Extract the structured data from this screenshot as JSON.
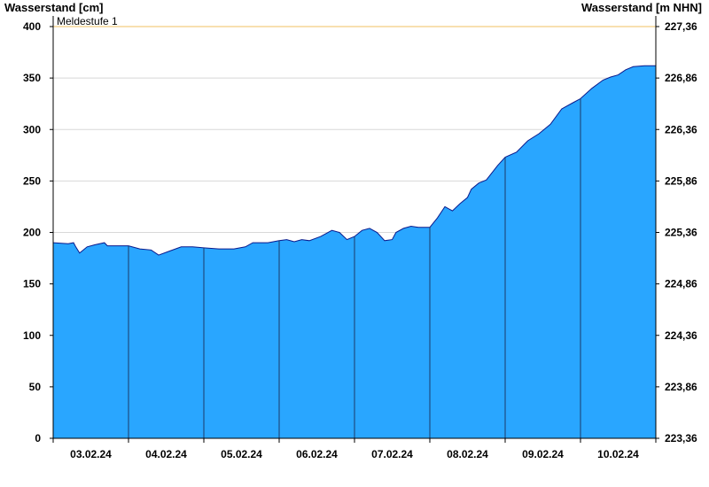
{
  "chart_data": {
    "type": "area",
    "ylabel_left": "Wasserstand [cm]",
    "ylabel_right": "Wasserstand [m NHN]",
    "ylim": [
      0,
      400
    ],
    "yticks_left": [
      "0",
      "50",
      "100",
      "150",
      "200",
      "250",
      "300",
      "350",
      "400"
    ],
    "yticks_right": [
      "223,36",
      "223,86",
      "224,36",
      "224,86",
      "225,36",
      "225,86",
      "226,36",
      "226,86",
      "227,36"
    ],
    "x_ticks": [
      "03.02.24",
      "04.02.24",
      "05.02.24",
      "06.02.24",
      "07.02.24",
      "08.02.24",
      "09.02.24",
      "10.02.24"
    ],
    "xlim_days": [
      0,
      8
    ],
    "threshold": {
      "label": "Meldestufe 1",
      "value": 400,
      "color": "#f0c060"
    },
    "area_color": "#29a6ff",
    "line_color": "#0a1a8c",
    "grid": true,
    "series": [
      {
        "x": [
          0,
          0.2,
          0.27,
          0.3,
          0.35,
          0.45,
          0.55,
          0.68,
          0.72,
          0.85,
          1.0,
          1.15,
          1.3,
          1.4,
          1.55,
          1.7,
          1.85,
          2.0,
          2.2,
          2.4,
          2.55,
          2.65,
          2.85,
          3.0,
          3.1,
          3.2,
          3.3,
          3.4,
          3.55,
          3.7,
          3.8,
          3.9,
          4.0,
          4.1,
          4.2,
          4.3,
          4.4,
          4.5,
          4.55,
          4.65,
          4.75,
          4.85,
          5.0,
          5.1,
          5.2,
          5.3,
          5.4,
          5.5,
          5.55,
          5.65,
          5.75,
          5.9,
          6.0,
          6.15,
          6.3,
          6.45,
          6.6,
          6.75,
          6.9,
          7.0,
          7.15,
          7.3,
          7.4,
          7.5,
          7.6,
          7.7,
          7.85,
          8.0
        ],
        "y": [
          190,
          189,
          190,
          186,
          180,
          186,
          188,
          190,
          187,
          187,
          187,
          184,
          183,
          178,
          182,
          186,
          186,
          185,
          184,
          184,
          186,
          190,
          190,
          192,
          193,
          191,
          193,
          192,
          196,
          202,
          200,
          193,
          196,
          202,
          204,
          200,
          192,
          193,
          200,
          204,
          206,
          205,
          205,
          214,
          225,
          221,
          228,
          234,
          242,
          248,
          251,
          265,
          273,
          278,
          289,
          296,
          305,
          320,
          326,
          330,
          340,
          348,
          351,
          353,
          358,
          361,
          362,
          362
        ]
      }
    ]
  }
}
